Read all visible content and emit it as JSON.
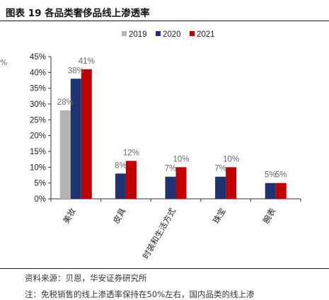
{
  "header": {
    "figure_title": "图表 19  各品类奢侈品线上渗透率",
    "edge_mark": "%"
  },
  "footer": {
    "source": "资料来源：贝恩，华安证券研究所",
    "note": "注：免税销售的线上渗透率保持在50%左右，国内品类的线上渗"
  },
  "colors": {
    "2019": "#b4b4b4",
    "2020": "#1f3370",
    "2021": "#c00000",
    "axis": "#333333"
  },
  "chart_data": {
    "type": "bar",
    "categories": [
      "美妆",
      "皮具",
      "时装和生活方式",
      "珠宝",
      "腕表"
    ],
    "series": [
      {
        "name": "2019",
        "values": [
          28,
          null,
          null,
          null,
          null
        ],
        "labels": [
          "28%",
          "",
          "",
          "",
          ""
        ]
      },
      {
        "name": "2020",
        "values": [
          38,
          8,
          7,
          7,
          5
        ],
        "labels": [
          "38%",
          "8%",
          "7%",
          "7%",
          "5%"
        ]
      },
      {
        "name": "2021",
        "values": [
          41,
          12,
          10,
          10,
          5
        ],
        "labels": [
          "41%",
          "12%",
          "10%",
          "10%",
          "5%"
        ]
      }
    ],
    "y_ticks": [
      "0%",
      "5%",
      "10%",
      "15%",
      "20%",
      "25%",
      "30%",
      "35%",
      "40%",
      "45%"
    ],
    "ylim": [
      0,
      45
    ],
    "legend_position": "top",
    "grid": false
  }
}
